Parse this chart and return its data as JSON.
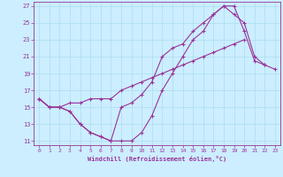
{
  "xlabel": "Windchill (Refroidissement éolien,°C)",
  "background_color": "#cceeff",
  "grid_color": "#aaddee",
  "line_color": "#993399",
  "xlim": [
    -0.5,
    23.5
  ],
  "ylim": [
    10.5,
    27.5
  ],
  "xticks": [
    0,
    1,
    2,
    3,
    4,
    5,
    6,
    7,
    8,
    9,
    10,
    11,
    12,
    13,
    14,
    15,
    16,
    17,
    18,
    19,
    20,
    21,
    22,
    23
  ],
  "yticks": [
    11,
    13,
    15,
    17,
    19,
    21,
    23,
    25,
    27
  ],
  "line1_x": [
    0,
    1,
    2,
    3,
    4,
    5,
    6,
    7,
    8,
    9,
    10,
    11,
    12,
    13,
    14,
    15,
    16,
    17,
    18,
    19,
    20,
    21,
    22,
    23
  ],
  "line1_y": [
    16,
    15,
    15,
    14.5,
    13,
    12,
    11.5,
    11,
    11,
    11,
    12,
    14,
    17,
    19,
    21,
    23,
    24,
    26,
    27,
    26,
    25,
    21,
    20,
    19.5
  ],
  "line2_x": [
    0,
    1,
    2,
    3,
    4,
    5,
    6,
    7,
    8,
    9,
    10,
    11,
    12,
    13,
    14,
    15,
    16,
    17,
    18,
    19,
    20,
    21,
    22,
    23
  ],
  "line2_y": [
    16,
    15,
    15,
    14.5,
    13,
    12,
    11.5,
    11,
    15,
    15.5,
    16.5,
    18,
    21,
    22,
    22.5,
    24,
    25,
    26,
    27,
    27,
    24,
    20.5,
    20,
    null
  ],
  "line3_x": [
    0,
    1,
    2,
    3,
    4,
    5,
    6,
    7,
    8,
    9,
    10,
    11,
    12,
    13,
    14,
    15,
    16,
    17,
    18,
    19,
    20,
    21,
    22,
    23
  ],
  "line3_y": [
    16,
    15,
    15,
    15.5,
    15.5,
    16,
    16,
    16,
    17,
    17.5,
    18,
    18.5,
    19,
    19.5,
    20,
    20.5,
    21,
    21.5,
    22,
    22.5,
    23,
    null,
    null,
    null
  ]
}
